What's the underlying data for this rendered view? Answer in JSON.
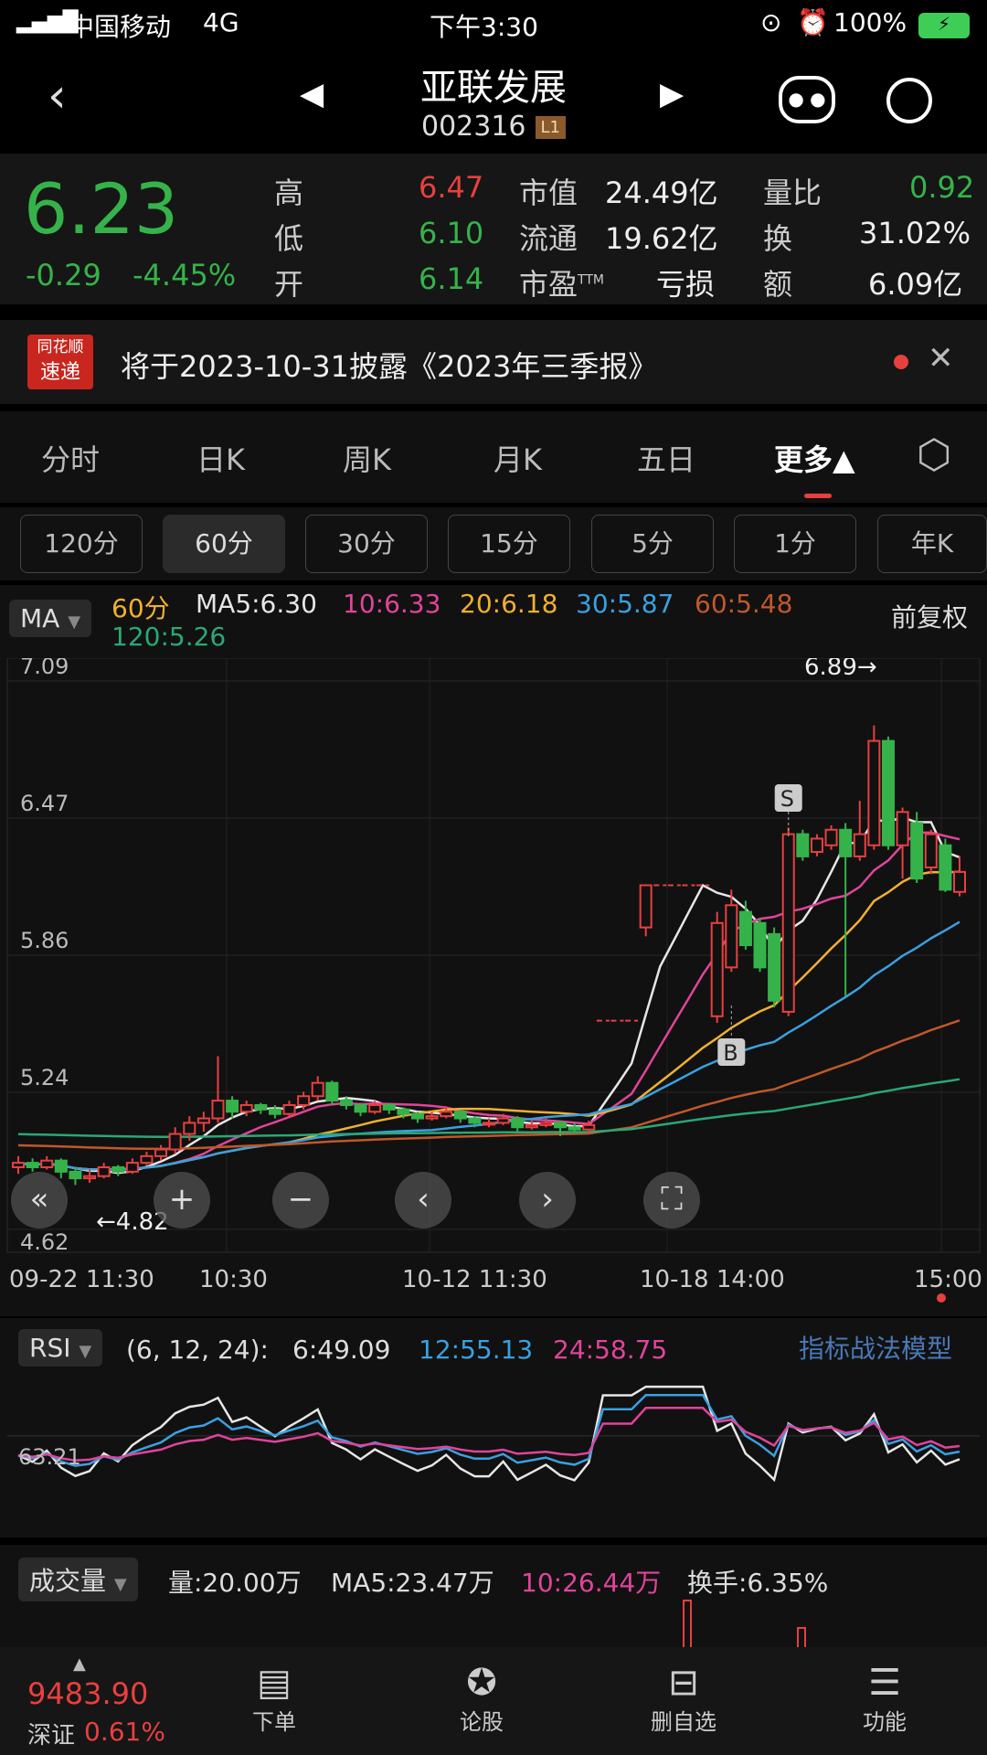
{
  "status": {
    "carrier": "中国移动",
    "network": "4G",
    "time": "下午3:30",
    "battery": "100%"
  },
  "nav": {
    "title": "亚联发展",
    "code": "002316",
    "level": "L1",
    "back_icon": "chevron-left-icon",
    "robot_icon": "robot-icon",
    "search_icon": "search-icon"
  },
  "quote": {
    "price": "6.23",
    "change": "-0.29",
    "change_pct": "-4.45%",
    "fields": [
      {
        "label": "高",
        "value": "6.47"
      },
      {
        "label": "低",
        "value": "6.10"
      },
      {
        "label": "开",
        "value": "6.14"
      },
      {
        "label": "市值",
        "value": "24.49亿"
      },
      {
        "label": "流通",
        "value": "19.62亿"
      },
      {
        "label": "市盈",
        "sup": "TTM",
        "value": "亏损"
      },
      {
        "label": "量比",
        "value": "0.92"
      },
      {
        "label": "换",
        "value": "31.02%"
      },
      {
        "label": "额",
        "value": "6.09亿"
      }
    ]
  },
  "news": {
    "logo_top": "同花顺",
    "logo_bottom": "速递",
    "text": "将于2023-10-31披露《2023年三季报》"
  },
  "tabs": [
    {
      "label": "分时"
    },
    {
      "label": "日K"
    },
    {
      "label": "周K"
    },
    {
      "label": "月K"
    },
    {
      "label": "五日"
    },
    {
      "label": "更多▲"
    }
  ],
  "periods": [
    {
      "label": "120分"
    },
    {
      "label": "60分"
    },
    {
      "label": "30分"
    },
    {
      "label": "15分"
    },
    {
      "label": "5分"
    },
    {
      "label": "1分"
    },
    {
      "label": "年K"
    }
  ],
  "ma": {
    "selector": "MA",
    "period": "60分",
    "ma5": "MA5:6.30",
    "ma10": "10:6.33",
    "ma20": "20:6.18",
    "ma30": "30:5.87",
    "ma60": "60:5.48",
    "ma120": "120:5.26",
    "adjust": "前复权"
  },
  "colors": {
    "up": "#e8403f",
    "down": "#35b34a",
    "ma5": "#e6e6e6",
    "ma10": "#e0449a",
    "ma20": "#f0b030",
    "ma30": "#3aa0e0",
    "ma60": "#c0582a",
    "ma120": "#2aa876"
  },
  "chart_data": {
    "type": "candlestick",
    "ylim": [
      4.62,
      7.09
    ],
    "yticks": [
      "7.09",
      "6.47",
      "5.86",
      "5.24",
      "4.62"
    ],
    "xticks": [
      "09-22 11:30",
      "10:30",
      "10-12 11:30",
      "10-18 14:00",
      "15:00"
    ],
    "max_label": "6.89→",
    "min_label": "←4.82",
    "sell_marker": "S",
    "buy_marker": "B",
    "ohlc": [
      [
        4.9,
        4.95,
        4.87,
        4.92
      ],
      [
        4.92,
        4.94,
        4.88,
        4.9
      ],
      [
        4.9,
        4.95,
        4.89,
        4.93
      ],
      [
        4.93,
        4.94,
        4.85,
        4.88
      ],
      [
        4.88,
        4.9,
        4.82,
        4.85
      ],
      [
        4.85,
        4.89,
        4.83,
        4.86
      ],
      [
        4.86,
        4.92,
        4.85,
        4.9
      ],
      [
        4.9,
        4.91,
        4.86,
        4.88
      ],
      [
        4.88,
        4.94,
        4.87,
        4.92
      ],
      [
        4.92,
        4.97,
        4.91,
        4.95
      ],
      [
        4.95,
        5.0,
        4.93,
        4.98
      ],
      [
        4.98,
        5.08,
        4.96,
        5.05
      ],
      [
        5.05,
        5.13,
        5.02,
        5.1
      ],
      [
        5.1,
        5.15,
        5.06,
        5.12
      ],
      [
        5.12,
        5.4,
        5.1,
        5.2
      ],
      [
        5.2,
        5.22,
        5.12,
        5.15
      ],
      [
        5.15,
        5.2,
        5.13,
        5.18
      ],
      [
        5.18,
        5.19,
        5.14,
        5.16
      ],
      [
        5.16,
        5.18,
        5.12,
        5.14
      ],
      [
        5.14,
        5.2,
        5.13,
        5.18
      ],
      [
        5.18,
        5.24,
        5.16,
        5.22
      ],
      [
        5.22,
        5.31,
        5.2,
        5.28
      ],
      [
        5.28,
        5.29,
        5.18,
        5.2
      ],
      [
        5.2,
        5.22,
        5.16,
        5.18
      ],
      [
        5.18,
        5.19,
        5.13,
        5.15
      ],
      [
        5.15,
        5.2,
        5.14,
        5.18
      ],
      [
        5.18,
        5.19,
        5.14,
        5.16
      ],
      [
        5.16,
        5.17,
        5.12,
        5.14
      ],
      [
        5.14,
        5.15,
        5.1,
        5.12
      ],
      [
        5.12,
        5.15,
        5.11,
        5.13
      ],
      [
        5.13,
        5.17,
        5.12,
        5.15
      ],
      [
        5.15,
        5.16,
        5.1,
        5.12
      ],
      [
        5.12,
        5.13,
        5.08,
        5.1
      ],
      [
        5.1,
        5.12,
        5.08,
        5.1
      ],
      [
        5.1,
        5.14,
        5.09,
        5.12
      ],
      [
        5.12,
        5.13,
        5.06,
        5.08
      ],
      [
        5.08,
        5.11,
        5.07,
        5.09
      ],
      [
        5.09,
        5.12,
        5.08,
        5.1
      ],
      [
        5.1,
        5.11,
        5.04,
        5.08
      ],
      [
        5.08,
        5.1,
        5.06,
        5.07
      ],
      [
        5.07,
        5.11,
        5.05,
        5.09
      ],
      [
        5.56,
        5.56,
        5.56,
        5.56
      ],
      [
        5.56,
        5.56,
        5.56,
        5.56
      ],
      [
        5.56,
        5.56,
        5.56,
        5.56
      ],
      [
        5.98,
        6.17,
        5.94,
        6.17
      ],
      [
        6.17,
        6.17,
        6.17,
        6.17
      ],
      [
        6.17,
        6.17,
        6.17,
        6.17
      ],
      [
        6.17,
        6.17,
        6.17,
        6.17
      ],
      [
        6.17,
        6.17,
        6.17,
        6.17
      ],
      [
        5.58,
        6.05,
        5.55,
        6.0
      ],
      [
        5.8,
        6.15,
        5.78,
        6.08
      ],
      [
        6.05,
        6.1,
        5.88,
        5.9
      ],
      [
        6.0,
        6.02,
        5.78,
        5.8
      ],
      [
        5.95,
        5.98,
        5.62,
        5.65
      ],
      [
        5.6,
        6.43,
        5.58,
        6.4
      ],
      [
        6.4,
        6.42,
        6.28,
        6.3
      ],
      [
        6.32,
        6.4,
        6.3,
        6.38
      ],
      [
        6.35,
        6.44,
        6.33,
        6.42
      ],
      [
        6.42,
        6.45,
        5.67,
        6.3
      ],
      [
        6.3,
        6.55,
        6.28,
        6.4
      ],
      [
        6.35,
        6.89,
        6.33,
        6.82
      ],
      [
        6.82,
        6.84,
        6.33,
        6.35
      ],
      [
        6.35,
        6.52,
        6.2,
        6.5
      ],
      [
        6.45,
        6.5,
        6.18,
        6.2
      ],
      [
        6.25,
        6.42,
        6.22,
        6.4
      ],
      [
        6.35,
        6.38,
        6.14,
        6.15
      ],
      [
        6.14,
        6.3,
        6.12,
        6.23
      ]
    ]
  },
  "rsi": {
    "selector": "RSI",
    "params": "(6, 12, 24):",
    "rsi6": "6:49.09",
    "rsi12": "12:55.13",
    "rsi24": "24:58.75",
    "model_link": "指标战法模型",
    "level": "63.21"
  },
  "volume": {
    "selector": "成交量",
    "vol": "量:20.00万",
    "ma5": "MA5:23.47万",
    "ma10": "10:26.44万",
    "turnover": "换手:6.35%"
  },
  "bottom": {
    "index_value": "9483.90",
    "index_name": "深证",
    "index_change": "0.61%",
    "items": [
      {
        "label": "下单"
      },
      {
        "label": "论股"
      },
      {
        "label": "删自选"
      },
      {
        "label": "功能"
      }
    ]
  }
}
